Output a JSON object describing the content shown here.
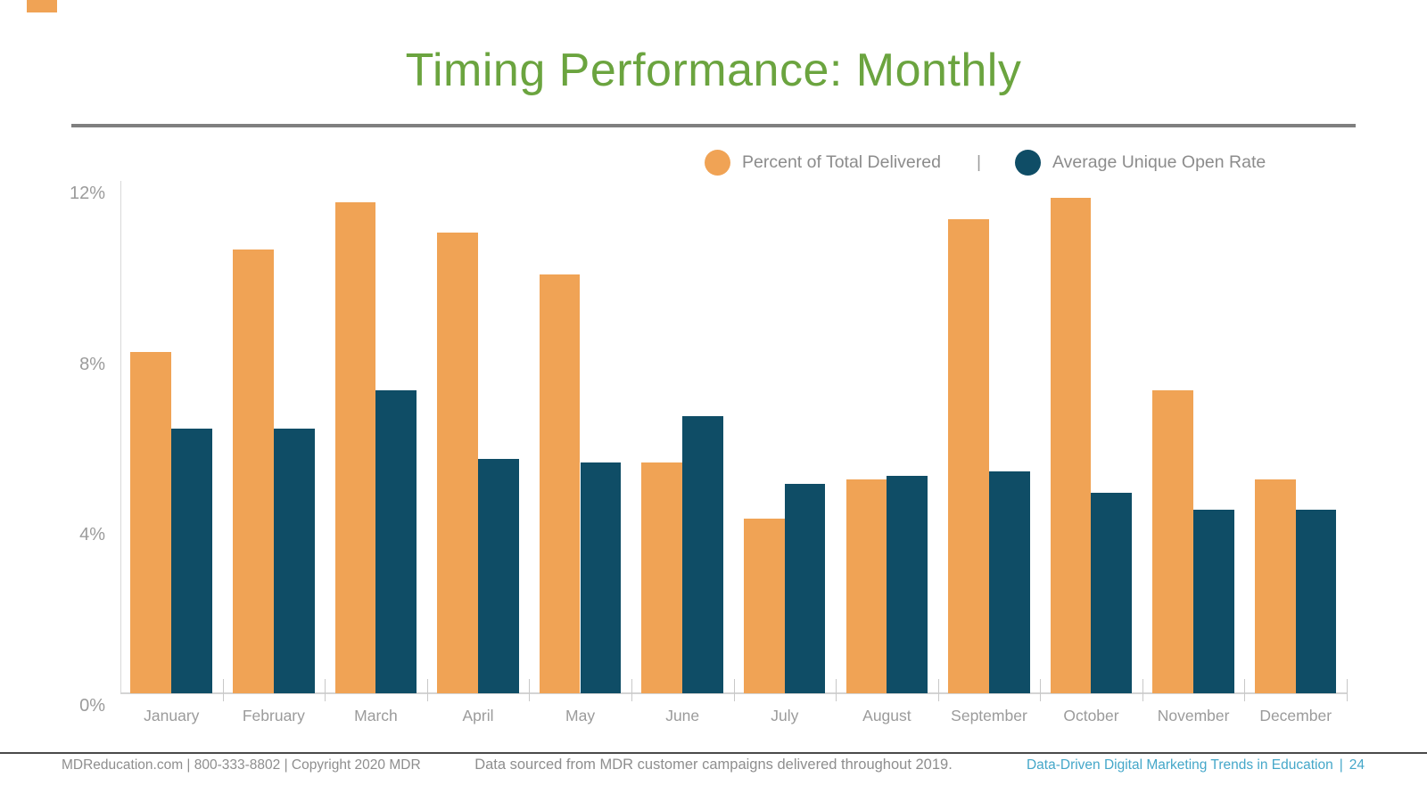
{
  "slide": {
    "title": "Timing Performance: Monthly"
  },
  "legend": {
    "delivered": {
      "label": "Percent of Total Delivered",
      "color": "#F0A355"
    },
    "separator": "|",
    "open_rate": {
      "label": "Average Unique Open Rate",
      "color": "#0F4D66"
    }
  },
  "chart_data": {
    "type": "bar",
    "title": "Timing Performance: Monthly",
    "categories": [
      "January",
      "February",
      "March",
      "April",
      "May",
      "June",
      "July",
      "August",
      "September",
      "October",
      "November",
      "December"
    ],
    "series": [
      {
        "name": "Percent of Total Delivered",
        "color": "#F0A355",
        "values": [
          8.0,
          10.4,
          11.5,
          10.8,
          9.8,
          5.4,
          4.1,
          5.0,
          11.1,
          11.6,
          7.1,
          5.0
        ]
      },
      {
        "name": "Average Unique Open Rate",
        "color": "#0F4D66",
        "values": [
          6.2,
          6.2,
          7.1,
          5.5,
          5.4,
          6.5,
          4.9,
          5.1,
          5.2,
          4.7,
          4.3,
          4.3
        ]
      }
    ],
    "xlabel": "",
    "ylabel": "",
    "ylim": [
      0,
      12
    ],
    "yticks": [
      {
        "value": 0,
        "label": "0%"
      },
      {
        "value": 4,
        "label": "4%"
      },
      {
        "value": 8,
        "label": "8%"
      },
      {
        "value": 12,
        "label": "12%"
      }
    ],
    "grid": false,
    "legend_position": "top-right"
  },
  "footer": {
    "left": "MDReducation.com  |  800-333-8802  |  Copyright 2020 MDR",
    "center": "Data sourced from MDR customer campaigns delivered throughout 2019.",
    "right_title": "Data-Driven Digital Marketing Trends in Education",
    "right_separator": "|",
    "page_number": "24"
  }
}
